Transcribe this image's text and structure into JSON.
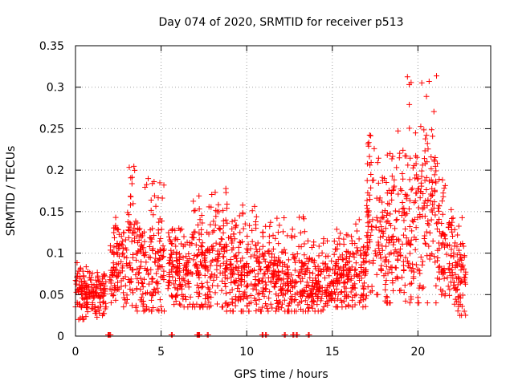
{
  "chart_data": {
    "type": "scatter",
    "title": "Day 074 of 2020, SRMTID for receiver p513",
    "xlabel": "GPS time / hours",
    "ylabel": "SRMTID / TECUs",
    "xlim": [
      0,
      24.25
    ],
    "ylim": [
      0,
      0.35
    ],
    "xticks": [
      0,
      5,
      10,
      15,
      20
    ],
    "yticks": [
      0,
      0.05,
      0.1,
      0.15,
      0.2,
      0.25,
      0.3,
      0.35
    ],
    "grid": true,
    "legend": "none",
    "marker": "+",
    "color": "#ff0000",
    "zero_points_x": [
      1.9,
      2.0,
      5.6,
      7.1,
      7.2,
      7.7,
      10.9,
      11.1,
      12.2,
      12.7,
      12.9,
      13.6
    ],
    "envelope": [
      {
        "x": [
          0.0,
          0.6
        ],
        "low": 0.02,
        "mid": 0.055,
        "high": 0.09
      },
      {
        "x": [
          0.6,
          1.8
        ],
        "low": 0.02,
        "mid": 0.05,
        "high": 0.085
      },
      {
        "x": [
          2.0,
          3.0
        ],
        "low": 0.03,
        "mid": 0.09,
        "high": 0.15
      },
      {
        "x": [
          3.0,
          3.6
        ],
        "low": 0.03,
        "mid": 0.1,
        "high": 0.215
      },
      {
        "x": [
          3.6,
          5.2
        ],
        "low": 0.03,
        "mid": 0.09,
        "high": 0.19
      },
      {
        "x": [
          5.4,
          6.8
        ],
        "low": 0.035,
        "mid": 0.08,
        "high": 0.14
      },
      {
        "x": [
          6.8,
          8.8
        ],
        "low": 0.035,
        "mid": 0.085,
        "high": 0.18
      },
      {
        "x": [
          8.8,
          11.5
        ],
        "low": 0.03,
        "mid": 0.075,
        "high": 0.16
      },
      {
        "x": [
          11.5,
          13.6
        ],
        "low": 0.03,
        "mid": 0.065,
        "high": 0.145
      },
      {
        "x": [
          13.6,
          15.0
        ],
        "low": 0.03,
        "mid": 0.06,
        "high": 0.12
      },
      {
        "x": [
          15.0,
          17.0
        ],
        "low": 0.035,
        "mid": 0.075,
        "high": 0.145
      },
      {
        "x": [
          17.0,
          18.0
        ],
        "low": 0.05,
        "mid": 0.14,
        "high": 0.255
      },
      {
        "x": [
          18.0,
          19.3
        ],
        "low": 0.04,
        "mid": 0.12,
        "high": 0.25
      },
      {
        "x": [
          19.3,
          20.2
        ],
        "low": 0.04,
        "mid": 0.14,
        "high": 0.315
      },
      {
        "x": [
          20.2,
          21.2
        ],
        "low": 0.04,
        "mid": 0.15,
        "high": 0.32
      },
      {
        "x": [
          21.2,
          22.0
        ],
        "low": 0.04,
        "mid": 0.1,
        "high": 0.19
      },
      {
        "x": [
          22.0,
          22.8
        ],
        "low": 0.025,
        "mid": 0.07,
        "high": 0.145
      }
    ]
  }
}
